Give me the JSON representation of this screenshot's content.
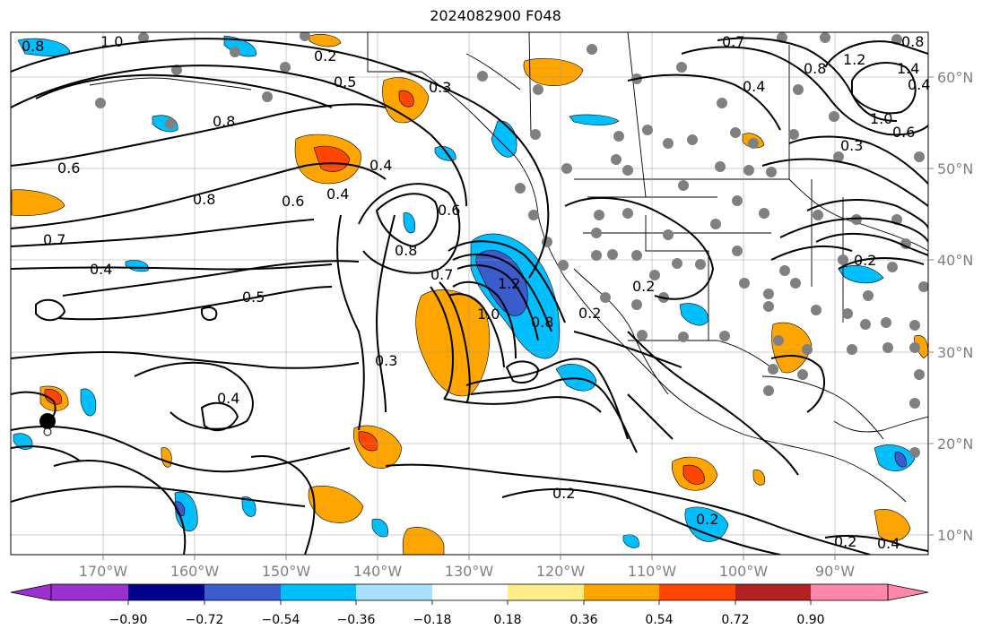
{
  "title": "2024082900 F048",
  "map": {
    "lon_ticks": [
      "170°W",
      "160°W",
      "150°W",
      "140°W",
      "130°W",
      "120°W",
      "110°W",
      "100°W",
      "90°W"
    ],
    "lat_ticks": [
      "60°N",
      "50°N",
      "40°N",
      "30°N",
      "20°N",
      "10°N"
    ],
    "tick_color": "#808080"
  },
  "colorbar": {
    "ticks": [
      "−0.90",
      "−0.72",
      "−0.54",
      "−0.36",
      "−0.18",
      "0.18",
      "0.36",
      "0.54",
      "0.72",
      "0.90"
    ],
    "colors": [
      "#9b30d0",
      "#00008b",
      "#3a5ccc",
      "#00bfff",
      "#a8e0ff",
      "#ffffff",
      "#ffee88",
      "#ffa500",
      "#ff4500",
      "#b22222",
      "#ff88aa"
    ]
  },
  "contour_labels": [
    "0.8",
    "1.0",
    "0.2",
    "0.5",
    "0.3",
    "0.8",
    "0.6",
    "0.4",
    "0.8",
    "0.7",
    "0.4",
    "0.5",
    "0.6",
    "0.4",
    "0.6",
    "0.8",
    "0.7",
    "1.0",
    "1.2",
    "0.8",
    "0.2",
    "0.2",
    "0.3",
    "0.4",
    "0.2",
    "0.2",
    "0.2",
    "0.4",
    "0.8",
    "1.2",
    "1.4",
    "1.0",
    "0.6",
    "0.3",
    "0.4",
    "0.2",
    "0.8",
    "0.4",
    "0.7"
  ]
}
